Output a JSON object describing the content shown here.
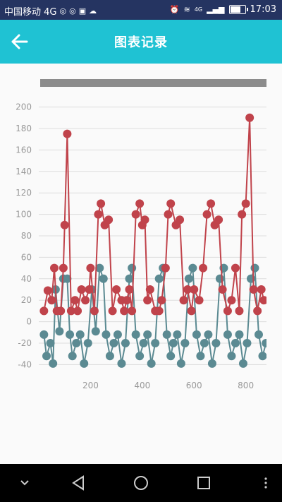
{
  "status_bar": {
    "carrier": "中国移动 4G",
    "net_badge": "4G",
    "time": "17:03",
    "battery_level": 0.75
  },
  "app_bar": {
    "title": "图表记录",
    "back_icon": "arrow-left-icon"
  },
  "colors": {
    "status_bar": "#253461",
    "app_bar": "#1fc2d3",
    "series_red": "#c0434b",
    "series_teal": "#5b8a92",
    "grid": "#dddddd",
    "axis_text": "#999999"
  },
  "chart_data": {
    "type": "line",
    "xlim": [
      0,
      880
    ],
    "ylim": [
      -45,
      205
    ],
    "xticks": [
      200,
      400,
      600,
      800
    ],
    "yticks": [
      -40,
      -20,
      0,
      20,
      40,
      60,
      80,
      100,
      120,
      140,
      160,
      180,
      200
    ],
    "grid": "horizontal",
    "series": [
      {
        "color": "#c0434b",
        "x": [
          20,
          35,
          50,
          60,
          70,
          85,
          95,
          100,
          110,
          125,
          140,
          150,
          165,
          180,
          195,
          200,
          215,
          230,
          240,
          255,
          270,
          285,
          300,
          320,
          330,
          340,
          350,
          360,
          375,
          390,
          400,
          410,
          420,
          430,
          450,
          465,
          475,
          490,
          500,
          510,
          530,
          545,
          560,
          575,
          590,
          600,
          620,
          635,
          650,
          665,
          680,
          695,
          710,
          730,
          745,
          760,
          775,
          785,
          800,
          815,
          830,
          845,
          860,
          870
        ],
        "y": [
          10,
          29,
          20,
          50,
          10,
          10,
          50,
          90,
          175,
          10,
          20,
          10,
          30,
          20,
          30,
          50,
          10,
          100,
          110,
          90,
          95,
          10,
          30,
          20,
          10,
          20,
          30,
          10,
          100,
          110,
          90,
          95,
          20,
          30,
          10,
          10,
          20,
          50,
          100,
          110,
          90,
          95,
          20,
          30,
          10,
          30,
          20,
          50,
          100,
          110,
          90,
          95,
          30,
          10,
          20,
          50,
          10,
          100,
          110,
          190,
          30,
          10,
          30,
          20
        ]
      },
      {
        "color": "#5b8a92",
        "x": [
          20,
          30,
          45,
          55,
          65,
          80,
          95,
          110,
          120,
          130,
          145,
          160,
          175,
          190,
          205,
          220,
          235,
          250,
          260,
          275,
          290,
          305,
          320,
          335,
          350,
          360,
          375,
          390,
          405,
          420,
          435,
          450,
          465,
          480,
          495,
          510,
          520,
          535,
          550,
          565,
          580,
          595,
          610,
          625,
          640,
          655,
          670,
          685,
          700,
          715,
          730,
          745,
          760,
          775,
          790,
          805,
          820,
          835,
          850,
          865,
          878
        ],
        "y": [
          -12,
          -32,
          -20,
          -39,
          30,
          -9,
          40,
          40,
          -12,
          -32,
          -20,
          -12,
          -39,
          -20,
          30,
          -9,
          50,
          40,
          -12,
          -32,
          -20,
          -12,
          -39,
          -20,
          40,
          50,
          -12,
          -32,
          -20,
          -12,
          -39,
          -20,
          40,
          50,
          -12,
          -32,
          -20,
          -12,
          -39,
          -20,
          40,
          50,
          -12,
          -32,
          -20,
          -12,
          -39,
          -20,
          40,
          50,
          -12,
          -32,
          -20,
          -12,
          -39,
          -20,
          40,
          50,
          -12,
          -32,
          -20
        ]
      }
    ]
  },
  "nav_bar": {
    "buttons": [
      "chevron-down-icon",
      "back-triangle-icon",
      "home-circle-icon",
      "recents-square-icon",
      "more-vert-icon"
    ]
  }
}
